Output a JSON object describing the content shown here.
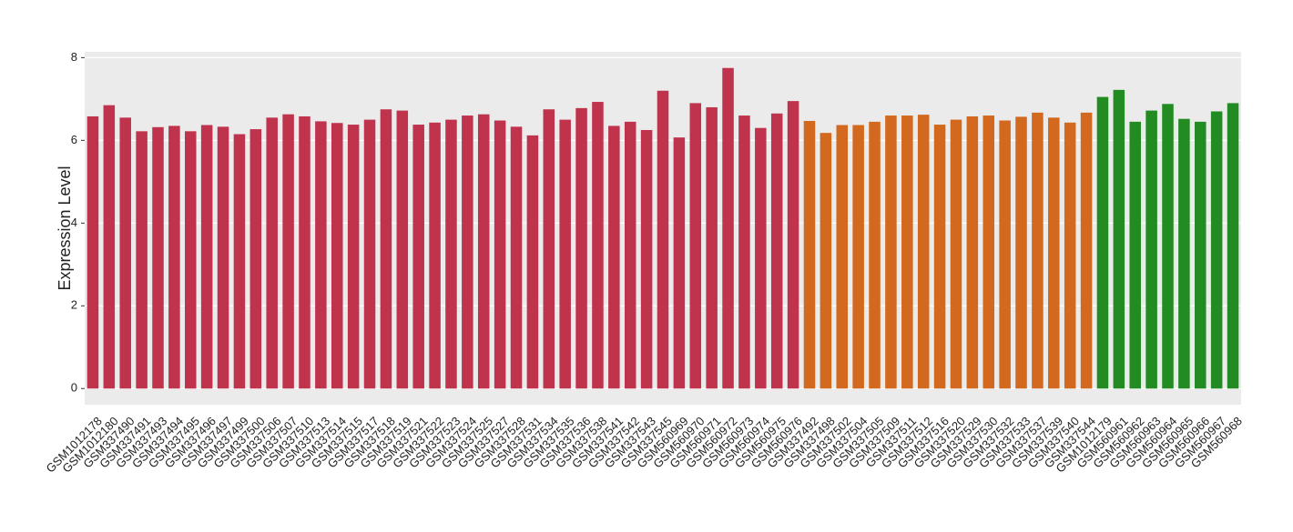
{
  "chart_data": {
    "type": "bar",
    "y_label": "Expression Level",
    "categories": [
      "GSM1012178",
      "GSM1012180",
      "GSM337490",
      "GSM337491",
      "GSM337493",
      "GSM337494",
      "GSM337495",
      "GSM337496",
      "GSM337497",
      "GSM337499",
      "GSM337500",
      "GSM337506",
      "GSM337507",
      "GSM337510",
      "GSM337513",
      "GSM337514",
      "GSM337515",
      "GSM337517",
      "GSM337518",
      "GSM337519",
      "GSM337521",
      "GSM337522",
      "GSM337523",
      "GSM337524",
      "GSM337525",
      "GSM337527",
      "GSM337528",
      "GSM337531",
      "GSM337534",
      "GSM337535",
      "GSM337536",
      "GSM337538",
      "GSM337541",
      "GSM337542",
      "GSM337543",
      "GSM337545",
      "GSM560969",
      "GSM560970",
      "GSM560971",
      "GSM560972",
      "GSM560973",
      "GSM560974",
      "GSM560975",
      "GSM560976",
      "GSM337492",
      "GSM337498",
      "GSM337502",
      "GSM337504",
      "GSM337505",
      "GSM337509",
      "GSM337511",
      "GSM337512",
      "GSM337516",
      "GSM337520",
      "GSM337529",
      "GSM337530",
      "GSM337532",
      "GSM337533",
      "GSM337537",
      "GSM337539",
      "GSM337540",
      "GSM337544",
      "GSM1012179",
      "GSM560961",
      "GSM560962",
      "GSM560963",
      "GSM560964",
      "GSM560965",
      "GSM560966",
      "GSM560967",
      "GSM560968"
    ],
    "values": [
      6.58,
      6.85,
      6.55,
      6.22,
      6.32,
      6.35,
      6.22,
      6.37,
      6.33,
      6.15,
      6.27,
      6.55,
      6.63,
      6.58,
      6.46,
      6.42,
      6.38,
      6.5,
      6.75,
      6.72,
      6.38,
      6.43,
      6.5,
      6.6,
      6.63,
      6.48,
      6.33,
      6.12,
      6.75,
      6.5,
      6.78,
      6.93,
      6.35,
      6.45,
      6.25,
      7.2,
      6.07,
      6.9,
      6.8,
      7.75,
      6.6,
      6.3,
      6.65,
      6.95,
      6.47,
      6.18,
      6.37,
      6.37,
      6.45,
      6.6,
      6.6,
      6.62,
      6.38,
      6.5,
      6.58,
      6.6,
      6.48,
      6.57,
      6.67,
      6.55,
      6.43,
      6.67,
      7.05,
      7.22,
      6.45,
      6.72,
      6.88,
      6.52,
      6.45,
      6.7,
      6.9
    ],
    "colors": [
      "#c0334d",
      "#c0334d",
      "#c0334d",
      "#c0334d",
      "#c0334d",
      "#c0334d",
      "#c0334d",
      "#c0334d",
      "#c0334d",
      "#c0334d",
      "#c0334d",
      "#c0334d",
      "#c0334d",
      "#c0334d",
      "#c0334d",
      "#c0334d",
      "#c0334d",
      "#c0334d",
      "#c0334d",
      "#c0334d",
      "#c0334d",
      "#c0334d",
      "#c0334d",
      "#c0334d",
      "#c0334d",
      "#c0334d",
      "#c0334d",
      "#c0334d",
      "#c0334d",
      "#c0334d",
      "#c0334d",
      "#c0334d",
      "#c0334d",
      "#c0334d",
      "#c0334d",
      "#c0334d",
      "#c0334d",
      "#c0334d",
      "#c0334d",
      "#c0334d",
      "#c0334d",
      "#c0334d",
      "#c0334d",
      "#c0334d",
      "#d2691e",
      "#d2691e",
      "#d2691e",
      "#d2691e",
      "#d2691e",
      "#d2691e",
      "#d2691e",
      "#d2691e",
      "#d2691e",
      "#d2691e",
      "#d2691e",
      "#d2691e",
      "#d2691e",
      "#d2691e",
      "#d2691e",
      "#d2691e",
      "#d2691e",
      "#d2691e",
      "#228b22",
      "#228b22",
      "#228b22",
      "#228b22",
      "#228b22",
      "#228b22",
      "#228b22",
      "#228b22",
      "#228b22"
    ],
    "ylim": [
      -0.39,
      8.14
    ],
    "yticks": [
      0,
      2,
      4,
      6,
      8
    ],
    "grid": true
  }
}
